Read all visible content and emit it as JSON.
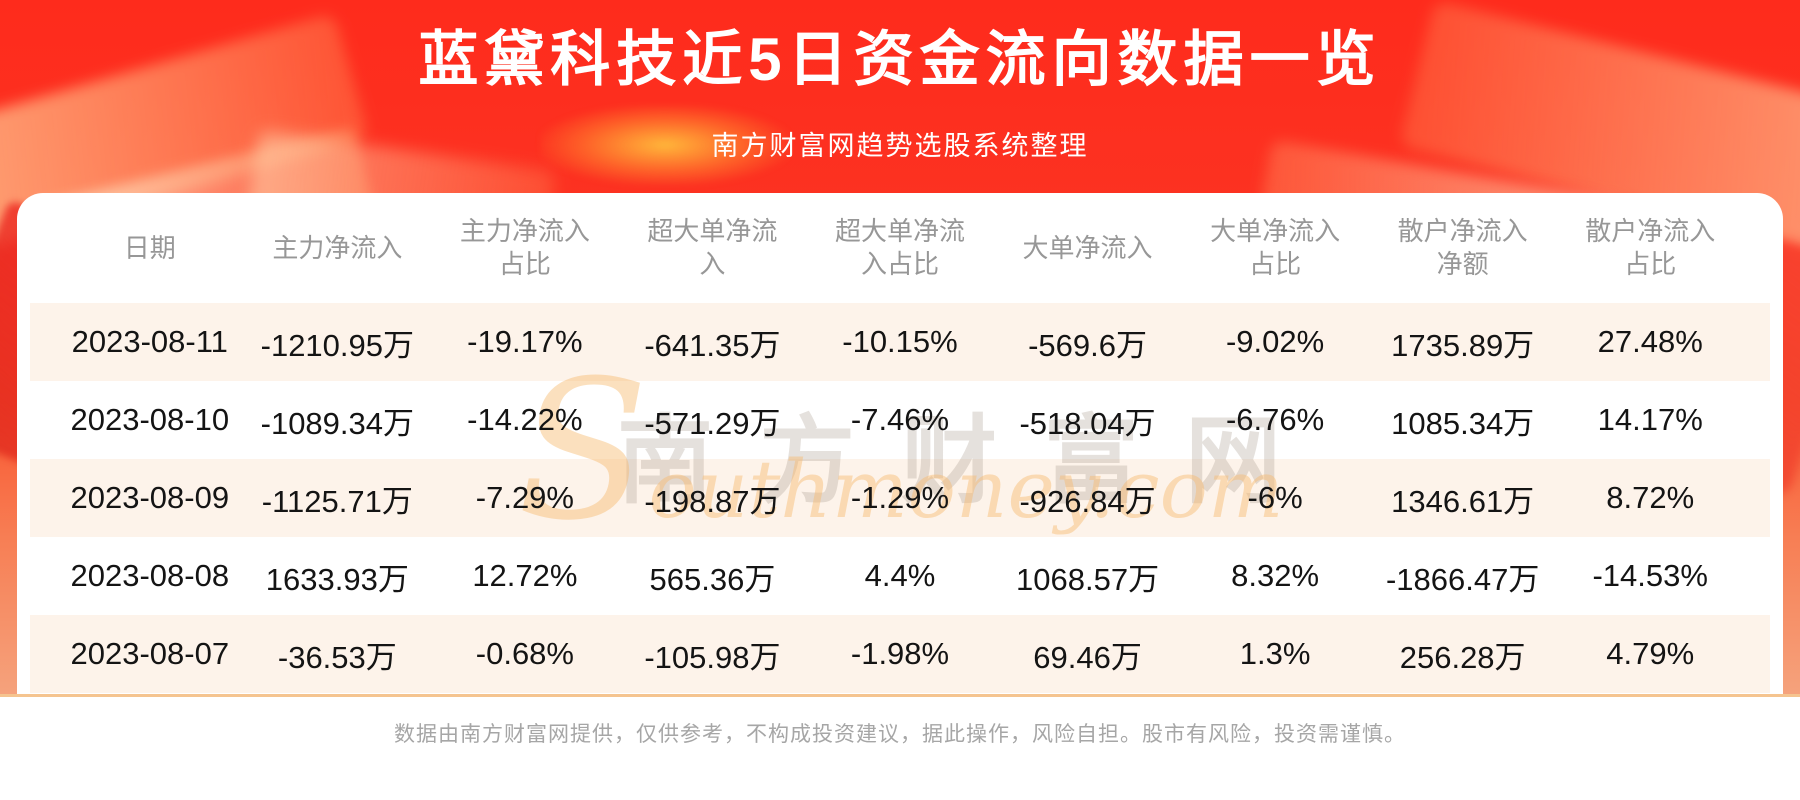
{
  "page": {
    "title": "蓝黛科技近5日资金流向数据一览",
    "subtitle": "南方财富网趋势选股系统整理",
    "footer_note": "数据由南方财富网提供，仅供参考，不构成投资建议，据此操作，风险自担。股市有风险，投资需谨慎。"
  },
  "watermark": {
    "cn": "南方财富网",
    "en": "Southmoney.com"
  },
  "colors": {
    "banner_red_top": "#fe2b1c",
    "banner_orange_bottom": "#f5a27c",
    "card_background": "#ffffff",
    "row_stripe": "#fdf3ea",
    "divider_orange": "#f5c48f",
    "header_text": "#979797",
    "data_text": "#141414",
    "footer_text": "#a6a6a6",
    "title_text": "#ffffff"
  },
  "chart_data": {
    "type": "table",
    "title": "蓝黛科技近5日资金流向数据一览",
    "columns": [
      "日期",
      "主力净流入",
      "主力净流入占比",
      "超大单净流入",
      "超大单净流入占比",
      "大单净流入",
      "大单净流入占比",
      "散户净流入净额",
      "散户净流入占比"
    ],
    "rows": [
      [
        "2023-08-11",
        "-1210.95万",
        "-19.17%",
        "-641.35万",
        "-10.15%",
        "-569.6万",
        "-9.02%",
        "1735.89万",
        "27.48%"
      ],
      [
        "2023-08-10",
        "-1089.34万",
        "-14.22%",
        "-571.29万",
        "-7.46%",
        "-518.04万",
        "-6.76%",
        "1085.34万",
        "14.17%"
      ],
      [
        "2023-08-09",
        "-1125.71万",
        "-7.29%",
        "-198.87万",
        "-1.29%",
        "-926.84万",
        "-6%",
        "1346.61万",
        "8.72%"
      ],
      [
        "2023-08-08",
        "1633.93万",
        "12.72%",
        "565.36万",
        "4.4%",
        "1068.57万",
        "8.32%",
        "-1866.47万",
        "-14.53%"
      ],
      [
        "2023-08-07",
        "-36.53万",
        "-0.68%",
        "-105.98万",
        "-1.98%",
        "69.46万",
        "1.3%",
        "256.28万",
        "4.79%"
      ]
    ]
  }
}
